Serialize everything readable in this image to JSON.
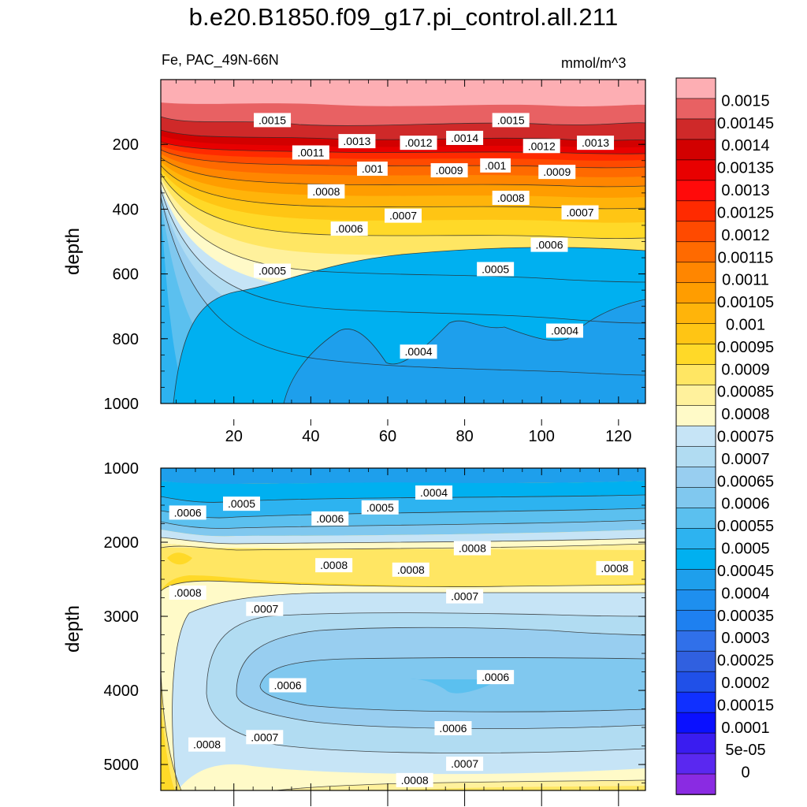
{
  "title": "b.e20.B1850.f09_g17.pi_control.all.211",
  "variable_label": "Fe, PAC_49N-66N",
  "units": "mmol/m^3",
  "ylabel": "depth",
  "colors": [
    "#fdaeb3",
    "#e86163",
    "#cf2929",
    "#d20000",
    "#e80000",
    "#ff0a0a",
    "#ff2a00",
    "#ff4a00",
    "#ff6a00",
    "#ff8600",
    "#ff9d00",
    "#ffb40a",
    "#ffc514",
    "#ffd928",
    "#ffe663",
    "#fff19c",
    "#fffac8",
    "#c6e4f6",
    "#b1dcf2",
    "#98cef0",
    "#80c8ef",
    "#5bc0ef",
    "#2db3f0",
    "#00b0f0",
    "#1e9fec",
    "#1e8fef",
    "#1e80f0",
    "#3070ea",
    "#3060e0",
    "#2050e8",
    "#1030ff",
    "#0a10ff",
    "#3a1cf0",
    "#5a28f0",
    "#8a2be2"
  ],
  "colorbar_labels": [
    "0.0015",
    "0.00145",
    "0.0014",
    "0.00135",
    "0.0013",
    "0.00125",
    "0.0012",
    "0.00115",
    "0.0011",
    "0.00105",
    "0.001",
    "0.00095",
    "0.0009",
    "0.00085",
    "0.0008",
    "0.00075",
    "0.0007",
    "0.00065",
    "0.0006",
    "0.00055",
    "0.0005",
    "0.00045",
    "0.0004",
    "0.00035",
    "0.0003",
    "0.00025",
    "0.0002",
    "0.00015",
    "0.0001",
    "5e-05",
    "0"
  ],
  "chart_data": [
    {
      "type": "heatmap",
      "panel": "upper",
      "title": "Fe, PAC_49N-66N",
      "units": "mmol/m^3",
      "xlabel": "",
      "ylabel": "depth",
      "xlim": [
        1,
        127
      ],
      "ylim": [
        1000,
        0
      ],
      "xticks": [
        20,
        40,
        60,
        80,
        100,
        120
      ],
      "yticks": [
        200,
        400,
        600,
        800,
        1000
      ],
      "contour_labels": [
        {
          "text": ".0015",
          "x": 30,
          "y": 125
        },
        {
          "text": ".0015",
          "x": 92,
          "y": 125
        },
        {
          "text": ".0013",
          "x": 52,
          "y": 190
        },
        {
          "text": ".0012",
          "x": 68,
          "y": 195
        },
        {
          "text": ".0014",
          "x": 80,
          "y": 180
        },
        {
          "text": ".0012",
          "x": 100,
          "y": 205
        },
        {
          "text": ".0013",
          "x": 114,
          "y": 195
        },
        {
          "text": ".0011",
          "x": 40,
          "y": 225
        },
        {
          "text": ".001",
          "x": 56,
          "y": 275
        },
        {
          "text": ".0009",
          "x": 76,
          "y": 280
        },
        {
          "text": ".001",
          "x": 88,
          "y": 265
        },
        {
          "text": ".0009",
          "x": 104,
          "y": 285
        },
        {
          "text": ".0008",
          "x": 44,
          "y": 345
        },
        {
          "text": ".0008",
          "x": 92,
          "y": 365
        },
        {
          "text": ".0007",
          "x": 64,
          "y": 420
        },
        {
          "text": ".0007",
          "x": 110,
          "y": 410
        },
        {
          "text": ".0006",
          "x": 50,
          "y": 460
        },
        {
          "text": ".0006",
          "x": 102,
          "y": 510
        },
        {
          "text": ".0005",
          "x": 30,
          "y": 590
        },
        {
          "text": ".0005",
          "x": 88,
          "y": 585
        },
        {
          "text": ".0004",
          "x": 68,
          "y": 840
        },
        {
          "text": ".0004",
          "x": 106,
          "y": 775
        }
      ]
    },
    {
      "type": "heatmap",
      "panel": "lower",
      "ylabel": "depth",
      "xlim": [
        1,
        127
      ],
      "ylim": [
        5350,
        1000
      ],
      "yticks": [
        1000,
        2000,
        3000,
        4000,
        5000
      ],
      "contour_labels": [
        {
          "text": ".0006",
          "x": 8,
          "y": 1600
        },
        {
          "text": ".0005",
          "x": 22,
          "y": 1480
        },
        {
          "text": ".0006",
          "x": 45,
          "y": 1680
        },
        {
          "text": ".0005",
          "x": 58,
          "y": 1530
        },
        {
          "text": ".0004",
          "x": 72,
          "y": 1330
        },
        {
          "text": ".0008",
          "x": 82,
          "y": 2080
        },
        {
          "text": ".0008",
          "x": 46,
          "y": 2310
        },
        {
          "text": ".0008",
          "x": 66,
          "y": 2370
        },
        {
          "text": ".0008",
          "x": 119,
          "y": 2350
        },
        {
          "text": ".0008",
          "x": 8,
          "y": 2680
        },
        {
          "text": ".0007",
          "x": 28,
          "y": 2900
        },
        {
          "text": ".0007",
          "x": 80,
          "y": 2730
        },
        {
          "text": ".0006",
          "x": 34,
          "y": 3930
        },
        {
          "text": ".0006",
          "x": 88,
          "y": 3820
        },
        {
          "text": ".0006",
          "x": 77,
          "y": 4510
        },
        {
          "text": ".0007",
          "x": 28,
          "y": 4630
        },
        {
          "text": ".0008",
          "x": 13,
          "y": 4730
        },
        {
          "text": ".0007",
          "x": 80,
          "y": 4990
        },
        {
          "text": ".0008",
          "x": 67,
          "y": 5210
        }
      ]
    }
  ]
}
